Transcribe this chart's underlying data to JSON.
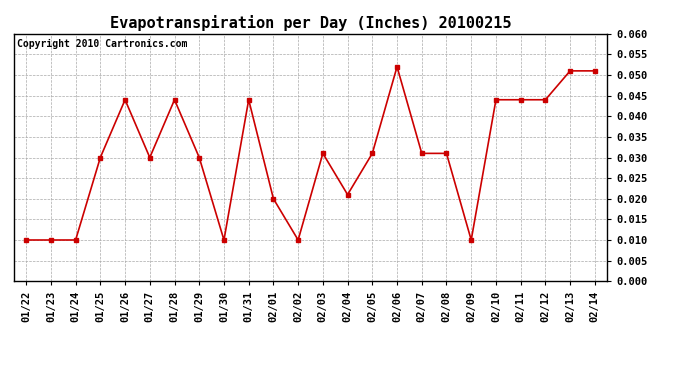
{
  "title": "Evapotranspiration per Day (Inches) 20100215",
  "copyright_text": "Copyright 2010 Cartronics.com",
  "x_labels": [
    "01/22",
    "01/23",
    "01/24",
    "01/25",
    "01/26",
    "01/27",
    "01/28",
    "01/29",
    "01/30",
    "01/31",
    "02/01",
    "02/02",
    "02/03",
    "02/04",
    "02/05",
    "02/06",
    "02/07",
    "02/08",
    "02/09",
    "02/10",
    "02/11",
    "02/12",
    "02/13",
    "02/14"
  ],
  "y_values": [
    0.01,
    0.01,
    0.01,
    0.03,
    0.044,
    0.03,
    0.044,
    0.03,
    0.01,
    0.044,
    0.02,
    0.01,
    0.031,
    0.021,
    0.031,
    0.052,
    0.031,
    0.031,
    0.01,
    0.044,
    0.044,
    0.044,
    0.051,
    0.051
  ],
  "ylim": [
    0.0,
    0.06
  ],
  "ytick_step": 0.005,
  "line_color": "#cc0000",
  "marker": "s",
  "marker_size": 3,
  "background_color": "#ffffff",
  "grid_color": "#aaaaaa",
  "title_fontsize": 11,
  "tick_fontsize": 7.5,
  "copyright_fontsize": 7
}
